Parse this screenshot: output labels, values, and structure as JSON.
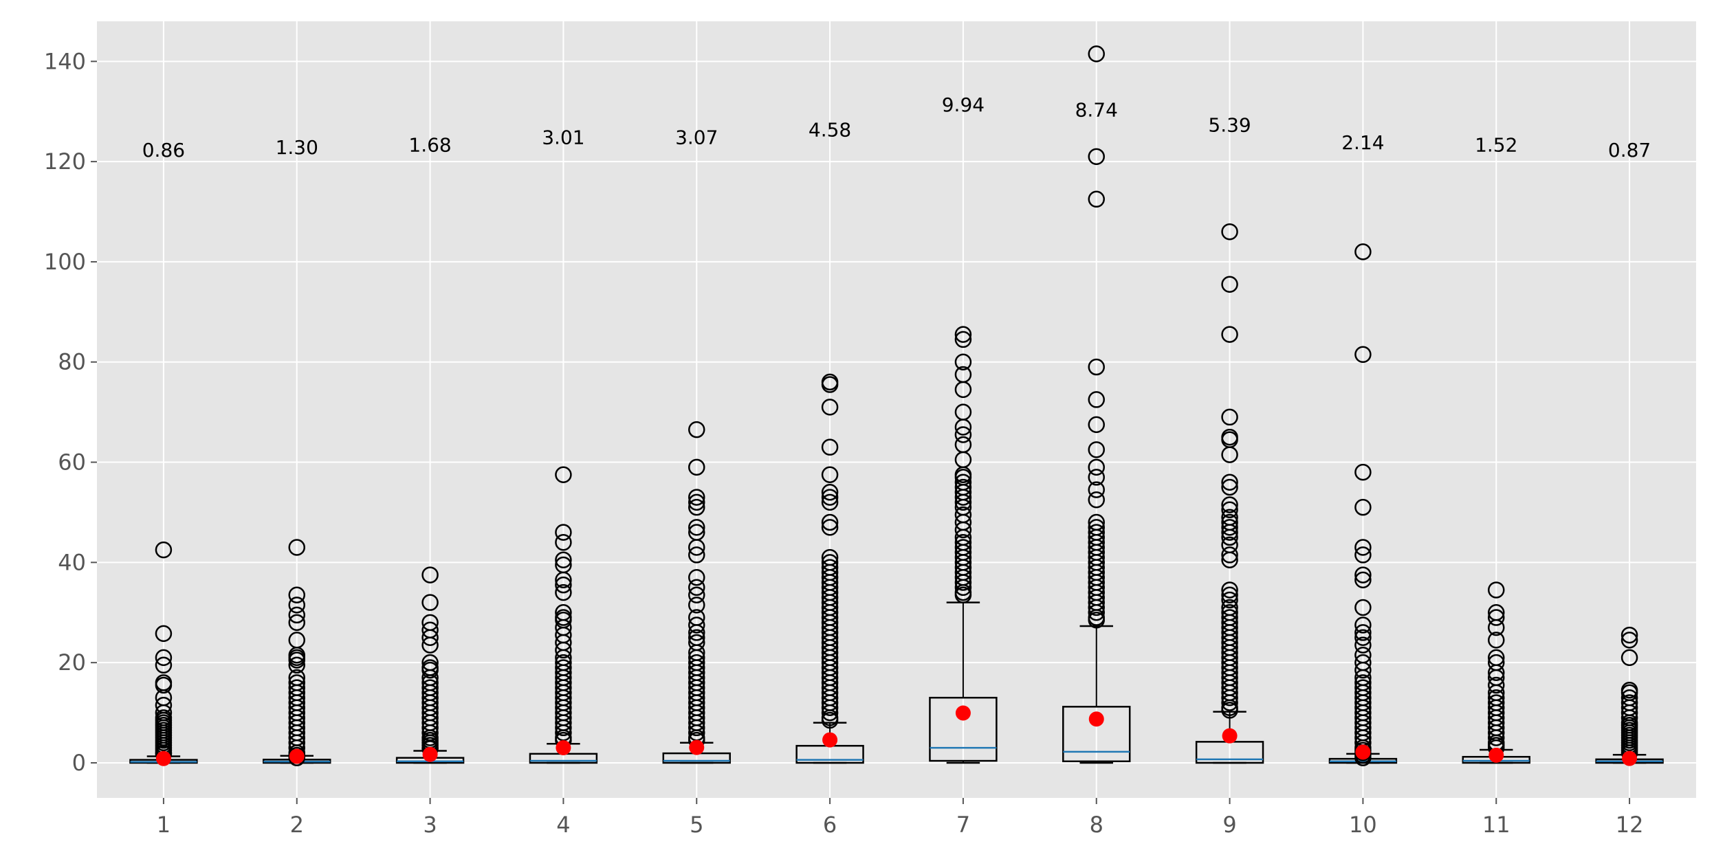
{
  "chart_data": {
    "type": "box",
    "title": "",
    "xlabel": "",
    "ylabel": "",
    "categories": [
      "1",
      "2",
      "3",
      "4",
      "5",
      "6",
      "7",
      "8",
      "9",
      "10",
      "11",
      "12"
    ],
    "ylim": [
      -7,
      148
    ],
    "yticks": [
      0,
      20,
      40,
      60,
      80,
      100,
      120,
      140
    ],
    "grid": true,
    "colors": {
      "background": "#e5e5e5",
      "grid": "#ffffff",
      "box": "#000000",
      "median": "#1f77b4",
      "mean_marker": "#ff0000",
      "tick_text": "#555555"
    },
    "boxes": [
      {
        "q1": 0.0,
        "median": 0.2,
        "q3": 0.6,
        "whisker_low": 0.0,
        "whisker_high": 1.3,
        "mean": 0.86,
        "mean_label": "0.86",
        "label_y": 121,
        "outliers": [
          42.5,
          25.8,
          21,
          19.5,
          16,
          15.5,
          13,
          11.5,
          10,
          9,
          8.5,
          8,
          7.5,
          7,
          6.5,
          6,
          5.5,
          5,
          4.5,
          4,
          3.5,
          3,
          2.5,
          2,
          1.8
        ]
      },
      {
        "q1": 0.0,
        "median": 0.25,
        "q3": 0.65,
        "whisker_low": 0.0,
        "whisker_high": 1.4,
        "mean": 1.3,
        "mean_label": "1.30",
        "label_y": 121.5,
        "outliers": [
          43,
          33.5,
          31.5,
          29.5,
          28,
          24.5,
          21.5,
          21,
          20.5,
          19.5,
          17,
          16,
          15,
          14,
          13,
          12,
          11,
          10,
          9,
          8,
          7,
          6,
          5,
          4,
          3,
          2,
          1.5,
          1
        ]
      },
      {
        "q1": 0.0,
        "median": 0.3,
        "q3": 1.0,
        "whisker_low": 0.0,
        "whisker_high": 2.4,
        "mean": 1.68,
        "mean_label": "1.68",
        "label_y": 122,
        "outliers": [
          37.5,
          32,
          28,
          26.5,
          25,
          23.5,
          20,
          19,
          18.5,
          17,
          16,
          15,
          14,
          13,
          12,
          11,
          10,
          9,
          8,
          7,
          6,
          5,
          4.5,
          4,
          3.5,
          3,
          2.8
        ]
      },
      {
        "q1": 0.0,
        "median": 0.4,
        "q3": 1.8,
        "whisker_low": 0.0,
        "whisker_high": 3.8,
        "mean": 3.01,
        "mean_label": "3.01",
        "label_y": 123.5,
        "outliers": [
          57.5,
          46,
          44,
          40.5,
          39.5,
          36.5,
          35.5,
          34,
          30,
          29,
          28.5,
          27,
          25.5,
          24,
          22.5,
          21,
          20,
          19,
          18,
          17,
          16,
          15,
          14,
          13,
          12,
          11,
          10,
          9,
          8,
          7,
          6,
          5,
          4.5
        ]
      },
      {
        "q1": 0.0,
        "median": 0.4,
        "q3": 1.9,
        "whisker_low": 0.0,
        "whisker_high": 4.0,
        "mean": 3.07,
        "mean_label": "3.07",
        "label_y": 123.5,
        "outliers": [
          66.5,
          59,
          53,
          52,
          51,
          47,
          46,
          43,
          41.5,
          37,
          35,
          33.5,
          31.5,
          29,
          27.5,
          26,
          25,
          24,
          22,
          21,
          20,
          19,
          18,
          17,
          16,
          15,
          14,
          13,
          12,
          11,
          10,
          9,
          8,
          7,
          6,
          5,
          4.5
        ]
      },
      {
        "q1": 0.0,
        "median": 0.6,
        "q3": 3.4,
        "whisker_low": 0.0,
        "whisker_high": 8.0,
        "mean": 4.58,
        "mean_label": "4.58",
        "label_y": 125,
        "outliers": [
          76,
          75.5,
          71,
          63,
          57.5,
          54,
          53,
          52,
          48,
          47,
          41,
          40,
          39,
          38,
          37,
          36,
          35,
          34,
          33,
          32,
          31,
          30,
          29,
          28,
          27,
          26,
          25,
          24,
          23,
          22,
          21,
          20,
          19,
          18,
          17,
          16,
          15,
          14,
          13,
          12,
          11,
          10,
          9,
          8.5
        ]
      },
      {
        "q1": 0.4,
        "median": 3.0,
        "q3": 13.0,
        "whisker_low": 0.0,
        "whisker_high": 32.0,
        "mean": 9.94,
        "mean_label": "9.94",
        "label_y": 130,
        "outliers": [
          85.5,
          84.5,
          80,
          77.5,
          74.5,
          70,
          67,
          65.5,
          63.5,
          60.5,
          57.5,
          57,
          56,
          55,
          54,
          53,
          52,
          51,
          49.5,
          48,
          46.5,
          45,
          44,
          43,
          42,
          41,
          40,
          39,
          38,
          37,
          36,
          35,
          34,
          33.5
        ]
      },
      {
        "q1": 0.3,
        "median": 2.2,
        "q3": 11.2,
        "whisker_low": 0.0,
        "whisker_high": 27.3,
        "mean": 8.74,
        "mean_label": "8.74",
        "label_y": 129,
        "outliers": [
          141.5,
          121,
          112.5,
          79,
          72.5,
          67.5,
          62.5,
          59,
          57,
          54.5,
          52.5,
          48,
          47,
          46,
          45,
          44,
          43,
          42,
          41,
          40,
          39,
          38,
          37,
          36,
          35,
          34,
          33,
          32,
          31,
          30,
          29,
          28.5
        ]
      },
      {
        "q1": 0.0,
        "median": 0.7,
        "q3": 4.2,
        "whisker_low": 0.0,
        "whisker_high": 10.2,
        "mean": 5.39,
        "mean_label": "5.39",
        "label_y": 126,
        "outliers": [
          106,
          95.5,
          85.5,
          69,
          65,
          64.5,
          61.5,
          56,
          55,
          51.5,
          50.5,
          49,
          48,
          47,
          46,
          45,
          43.5,
          41.5,
          40.5,
          34.5,
          33.5,
          32.5,
          31,
          30,
          29,
          28,
          27,
          26,
          25,
          24,
          23,
          22,
          21,
          20,
          19,
          18,
          17,
          16,
          15,
          14,
          13,
          12,
          11,
          10.5
        ]
      },
      {
        "q1": 0.0,
        "median": 0.3,
        "q3": 0.8,
        "whisker_low": 0.0,
        "whisker_high": 1.8,
        "mean": 2.14,
        "mean_label": "2.14",
        "label_y": 122.5,
        "outliers": [
          102,
          81.5,
          58,
          51,
          43,
          41.5,
          37.5,
          36.5,
          31,
          27.5,
          26,
          25,
          23.5,
          21.5,
          20,
          18.5,
          17,
          16,
          15,
          14,
          13,
          12,
          11,
          10,
          9,
          8,
          7,
          6,
          5,
          4,
          3,
          2.5,
          2,
          1.5,
          1
        ]
      },
      {
        "q1": 0.0,
        "median": 0.4,
        "q3": 1.2,
        "whisker_low": 0.0,
        "whisker_high": 2.6,
        "mean": 1.52,
        "mean_label": "1.52",
        "label_y": 122,
        "outliers": [
          34.5,
          30,
          29,
          27,
          24.5,
          21,
          20,
          18,
          17,
          15.5,
          14,
          13,
          12,
          11,
          10,
          9,
          8,
          7,
          6,
          5,
          4,
          3.5,
          3
        ]
      },
      {
        "q1": 0.0,
        "median": 0.3,
        "q3": 0.7,
        "whisker_low": 0.0,
        "whisker_high": 1.6,
        "mean": 0.87,
        "mean_label": "0.87",
        "label_y": 121,
        "outliers": [
          25.5,
          24.5,
          21,
          14.5,
          14,
          13,
          12,
          11,
          10,
          9,
          8,
          7.5,
          7,
          6.5,
          6,
          5.5,
          5,
          4.5,
          4,
          3.5,
          3,
          2.5,
          2
        ]
      }
    ]
  }
}
